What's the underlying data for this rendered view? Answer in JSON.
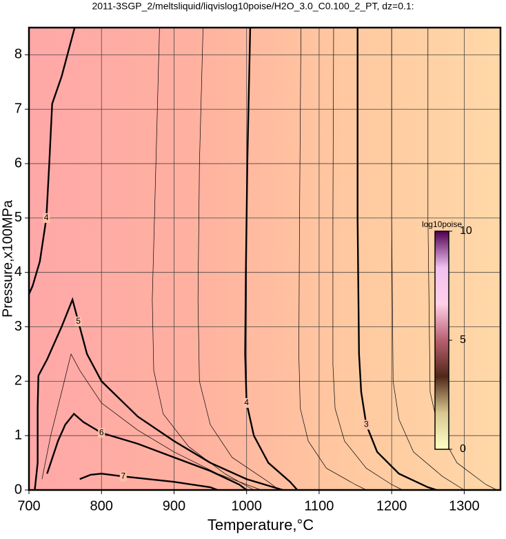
{
  "chart_data": {
    "type": "contour",
    "title": "2011-3SGP_2/meltsliquid/liqvislog10poise/H2O_3.0_C0.100_2_PT, dz=0.1:",
    "x_label": "Temperature,°C",
    "y_label": "Pressure,x100MPa",
    "xlim": [
      700,
      1350
    ],
    "ylim": [
      0,
      8.5
    ],
    "xticks": [
      700,
      800,
      900,
      1000,
      1100,
      1200,
      1300
    ],
    "yticks": [
      0,
      1,
      2,
      3,
      4,
      5,
      6,
      7,
      8
    ],
    "grid": true,
    "fill_colors": [
      "#ffa8a8",
      "#ffb0a0",
      "#ffc8a0",
      "#ffd8a8"
    ],
    "contours": [
      {
        "level": 3,
        "x": [
          1153,
          1153,
          1155,
          1158,
          1165,
          1180,
          1210,
          1250,
          1262
        ],
        "y": [
          8.5,
          5,
          2.5,
          1.8,
          1.2,
          0.7,
          0.3,
          0.05,
          0
        ]
      },
      {
        "level": 4,
        "x": [
          1005,
          1001,
          999,
          998,
          1000,
          1010,
          1030,
          1060,
          1070
        ],
        "y": [
          8.5,
          6,
          4,
          2.5,
          1.6,
          1.0,
          0.5,
          0.15,
          0
        ]
      },
      {
        "level": 4,
        "x": [
          763,
          745,
          732,
          728,
          724,
          715,
          705,
          700
        ],
        "y": [
          8.5,
          7.6,
          7.1,
          6,
          5,
          4.2,
          3.75,
          3.6
        ]
      },
      {
        "level": 5,
        "x": [
          708,
          712,
          712,
          713,
          725,
          745,
          760,
          768,
          780,
          800,
          850,
          900,
          950,
          1000,
          1050
        ],
        "y": [
          0,
          0.5,
          1.5,
          2.1,
          2.4,
          3.0,
          3.5,
          3.1,
          2.5,
          2.0,
          1.35,
          0.9,
          0.5,
          0.2,
          0
        ]
      },
      {
        "level": 6,
        "x": [
          725,
          740,
          750,
          762,
          775,
          800,
          850,
          900,
          950,
          990,
          1000
        ],
        "y": [
          0.3,
          0.9,
          1.2,
          1.4,
          1.25,
          1.05,
          0.85,
          0.6,
          0.35,
          0.1,
          0
        ]
      },
      {
        "level": 7,
        "x": [
          770,
          785,
          800,
          830,
          900,
          950,
          960
        ],
        "y": [
          0.2,
          0.28,
          0.3,
          0.25,
          0.15,
          0.05,
          0
        ]
      }
    ],
    "minor_contours": [
      {
        "level": 3.5,
        "x": [
          1075,
          1073,
          1072,
          1074,
          1085,
          1110,
          1150,
          1165
        ],
        "y": [
          8.5,
          5,
          2.5,
          1.5,
          0.9,
          0.4,
          0.1,
          0
        ]
      },
      {
        "level": 3.2,
        "x": [
          1120,
          1119,
          1119,
          1122,
          1135,
          1165,
          1200,
          1215
        ],
        "y": [
          8.5,
          5,
          2.3,
          1.5,
          0.9,
          0.4,
          0.1,
          0
        ]
      },
      {
        "level": 2.8,
        "x": [
          1200,
          1200,
          1202,
          1210,
          1230,
          1270,
          1300
        ],
        "y": [
          8.5,
          5,
          2.0,
          1.3,
          0.7,
          0.25,
          0
        ]
      },
      {
        "level": 2.6,
        "x": [
          1250,
          1250,
          1253,
          1265,
          1290,
          1330,
          1345
        ],
        "y": [
          8.5,
          5,
          1.8,
          1.1,
          0.5,
          0.1,
          0
        ]
      },
      {
        "level": 4.5,
        "x": [
          880,
          875,
          870,
          872,
          885,
          920,
          970,
          1010
        ],
        "y": [
          8.5,
          6,
          3.5,
          2.2,
          1.4,
          0.8,
          0.3,
          0
        ]
      },
      {
        "level": 4.3,
        "x": [
          940,
          935,
          933,
          935,
          950,
          980,
          1030,
          1045
        ],
        "y": [
          8.5,
          6,
          3.5,
          2.0,
          1.2,
          0.6,
          0.15,
          0
        ]
      },
      {
        "level": 5.5,
        "x": [
          718,
          730,
          745,
          758,
          770,
          800,
          850,
          900,
          960,
          1020
        ],
        "y": [
          0.2,
          1.0,
          1.8,
          2.5,
          2.2,
          1.6,
          1.1,
          0.7,
          0.3,
          0
        ]
      }
    ],
    "colorbar": {
      "label": "log10poise",
      "lim": [
        0,
        10
      ],
      "ticks": [
        0,
        5,
        10
      ],
      "colors": [
        "#ffffc8",
        "#d8c890",
        "#502818",
        "#b86070",
        "#ffd0e8",
        "#f0c0f0",
        "#500050"
      ]
    }
  }
}
